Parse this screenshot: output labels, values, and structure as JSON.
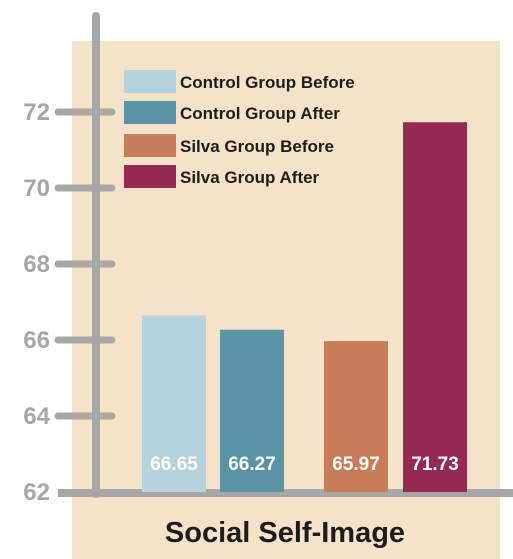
{
  "chart_data": {
    "type": "bar",
    "title": "Social Self-Image",
    "xlabel": "",
    "ylabel": "",
    "ylim": [
      62,
      73.4
    ],
    "yticks": [
      62,
      64,
      66,
      68,
      70,
      72
    ],
    "grid": false,
    "legend_position": "top-left",
    "series": [
      {
        "name": "Control Group Before",
        "value": 66.65,
        "label": "66.65",
        "color": "#b4d3df"
      },
      {
        "name": "Control Group After",
        "value": 66.27,
        "label": "66.27",
        "color": "#5a93a5"
      },
      {
        "name": "Silva Group Before",
        "value": 65.97,
        "label": "65.97",
        "color": "#c97c5a"
      },
      {
        "name": "Silva Group After",
        "value": 71.73,
        "label": "71.73",
        "color": "#962a52"
      }
    ],
    "background_color": "#f4e3c8",
    "axis_color": "#a7a7a7"
  }
}
